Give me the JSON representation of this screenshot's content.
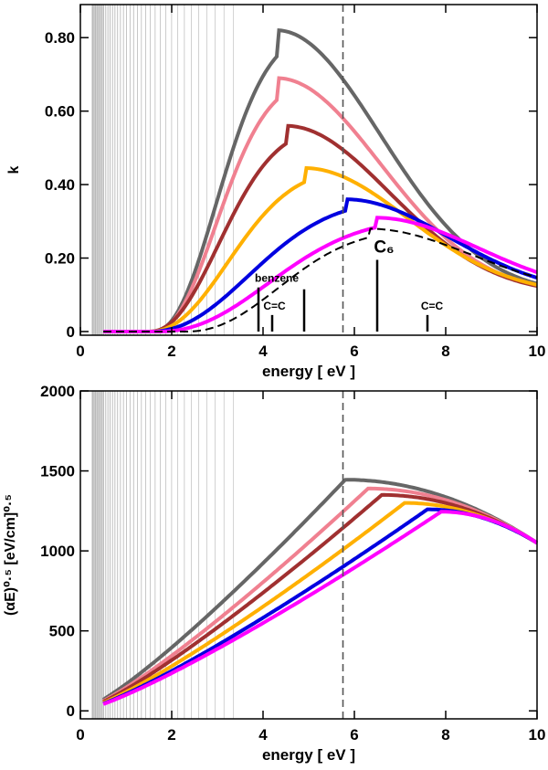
{
  "chart_data": [
    {
      "type": "line",
      "panel": "top",
      "xlabel": "energy  [ eV ]",
      "ylabel": "k",
      "xlim": [
        0,
        10
      ],
      "ylim": [
        -0.01,
        0.89
      ],
      "xticks": [
        "0",
        "2",
        "4",
        "6",
        "8",
        "10"
      ],
      "yticks": [
        "0",
        "0.20",
        "0.40",
        "0.60",
        "0.80"
      ],
      "vertical_dashed_line_x": 5.75,
      "grid": false,
      "series": [
        {
          "color": "#666666",
          "peak_x": 4.3,
          "peak_y": 0.82,
          "onset_x": 1.6
        },
        {
          "color": "#f08090",
          "peak_x": 4.3,
          "peak_y": 0.69,
          "onset_x": 1.6
        },
        {
          "color": "#a03030",
          "peak_x": 4.5,
          "peak_y": 0.56,
          "onset_x": 1.5
        },
        {
          "color": "#ffb000",
          "peak_x": 4.9,
          "peak_y": 0.445,
          "onset_x": 1.5
        },
        {
          "color": "#0000e0",
          "peak_x": 5.8,
          "peak_y": 0.36,
          "onset_x": 1.5
        },
        {
          "color": "#ff00ff",
          "peak_x": 6.45,
          "peak_y": 0.31,
          "onset_x": 1.7
        },
        {
          "color": "#000000",
          "style": "dashed",
          "peak_x": 6.3,
          "peak_y": 0.28,
          "onset_x": 2.3
        }
      ],
      "reference_lines": [
        {
          "x": 3.9,
          "height": 0.12
        },
        {
          "x": 4.2,
          "height": 0.045
        },
        {
          "x": 4.9,
          "height": 0.115
        },
        {
          "x": 6.5,
          "height": 0.195
        },
        {
          "x": 7.6,
          "height": 0.045
        }
      ],
      "annotations": [
        {
          "text": "benzene",
          "x": 4.3,
          "y": 0.125
        },
        {
          "text": "C=C",
          "x": 4.25,
          "y": 0.05
        },
        {
          "text": "C₆",
          "x": 6.65,
          "y": 0.205
        },
        {
          "text": "C=C",
          "x": 7.7,
          "y": 0.05
        }
      ]
    },
    {
      "type": "line",
      "panel": "bottom",
      "xlabel": "energy  [ eV ]",
      "ylabel": "(αE)⁰·⁵ [eV/cm]⁰·⁵",
      "xlim": [
        0,
        10
      ],
      "ylim": [
        -50,
        2000
      ],
      "xticks": [
        "0",
        "2",
        "4",
        "6",
        "8",
        "10"
      ],
      "yticks": [
        "0",
        "500",
        "1000",
        "1500",
        "2000"
      ],
      "vertical_dashed_line_x": 5.75,
      "grid": false,
      "series": [
        {
          "color": "#666666",
          "peak_x": 5.8,
          "peak_y": 1445
        },
        {
          "color": "#f08090",
          "peak_x": 6.3,
          "peak_y": 1390
        },
        {
          "color": "#a03030",
          "peak_x": 6.6,
          "peak_y": 1350
        },
        {
          "color": "#ffb000",
          "peak_x": 7.1,
          "peak_y": 1300
        },
        {
          "color": "#0000e0",
          "peak_x": 7.6,
          "peak_y": 1260
        },
        {
          "color": "#ff00ff",
          "peak_x": 7.9,
          "peak_y": 1245
        }
      ]
    }
  ]
}
